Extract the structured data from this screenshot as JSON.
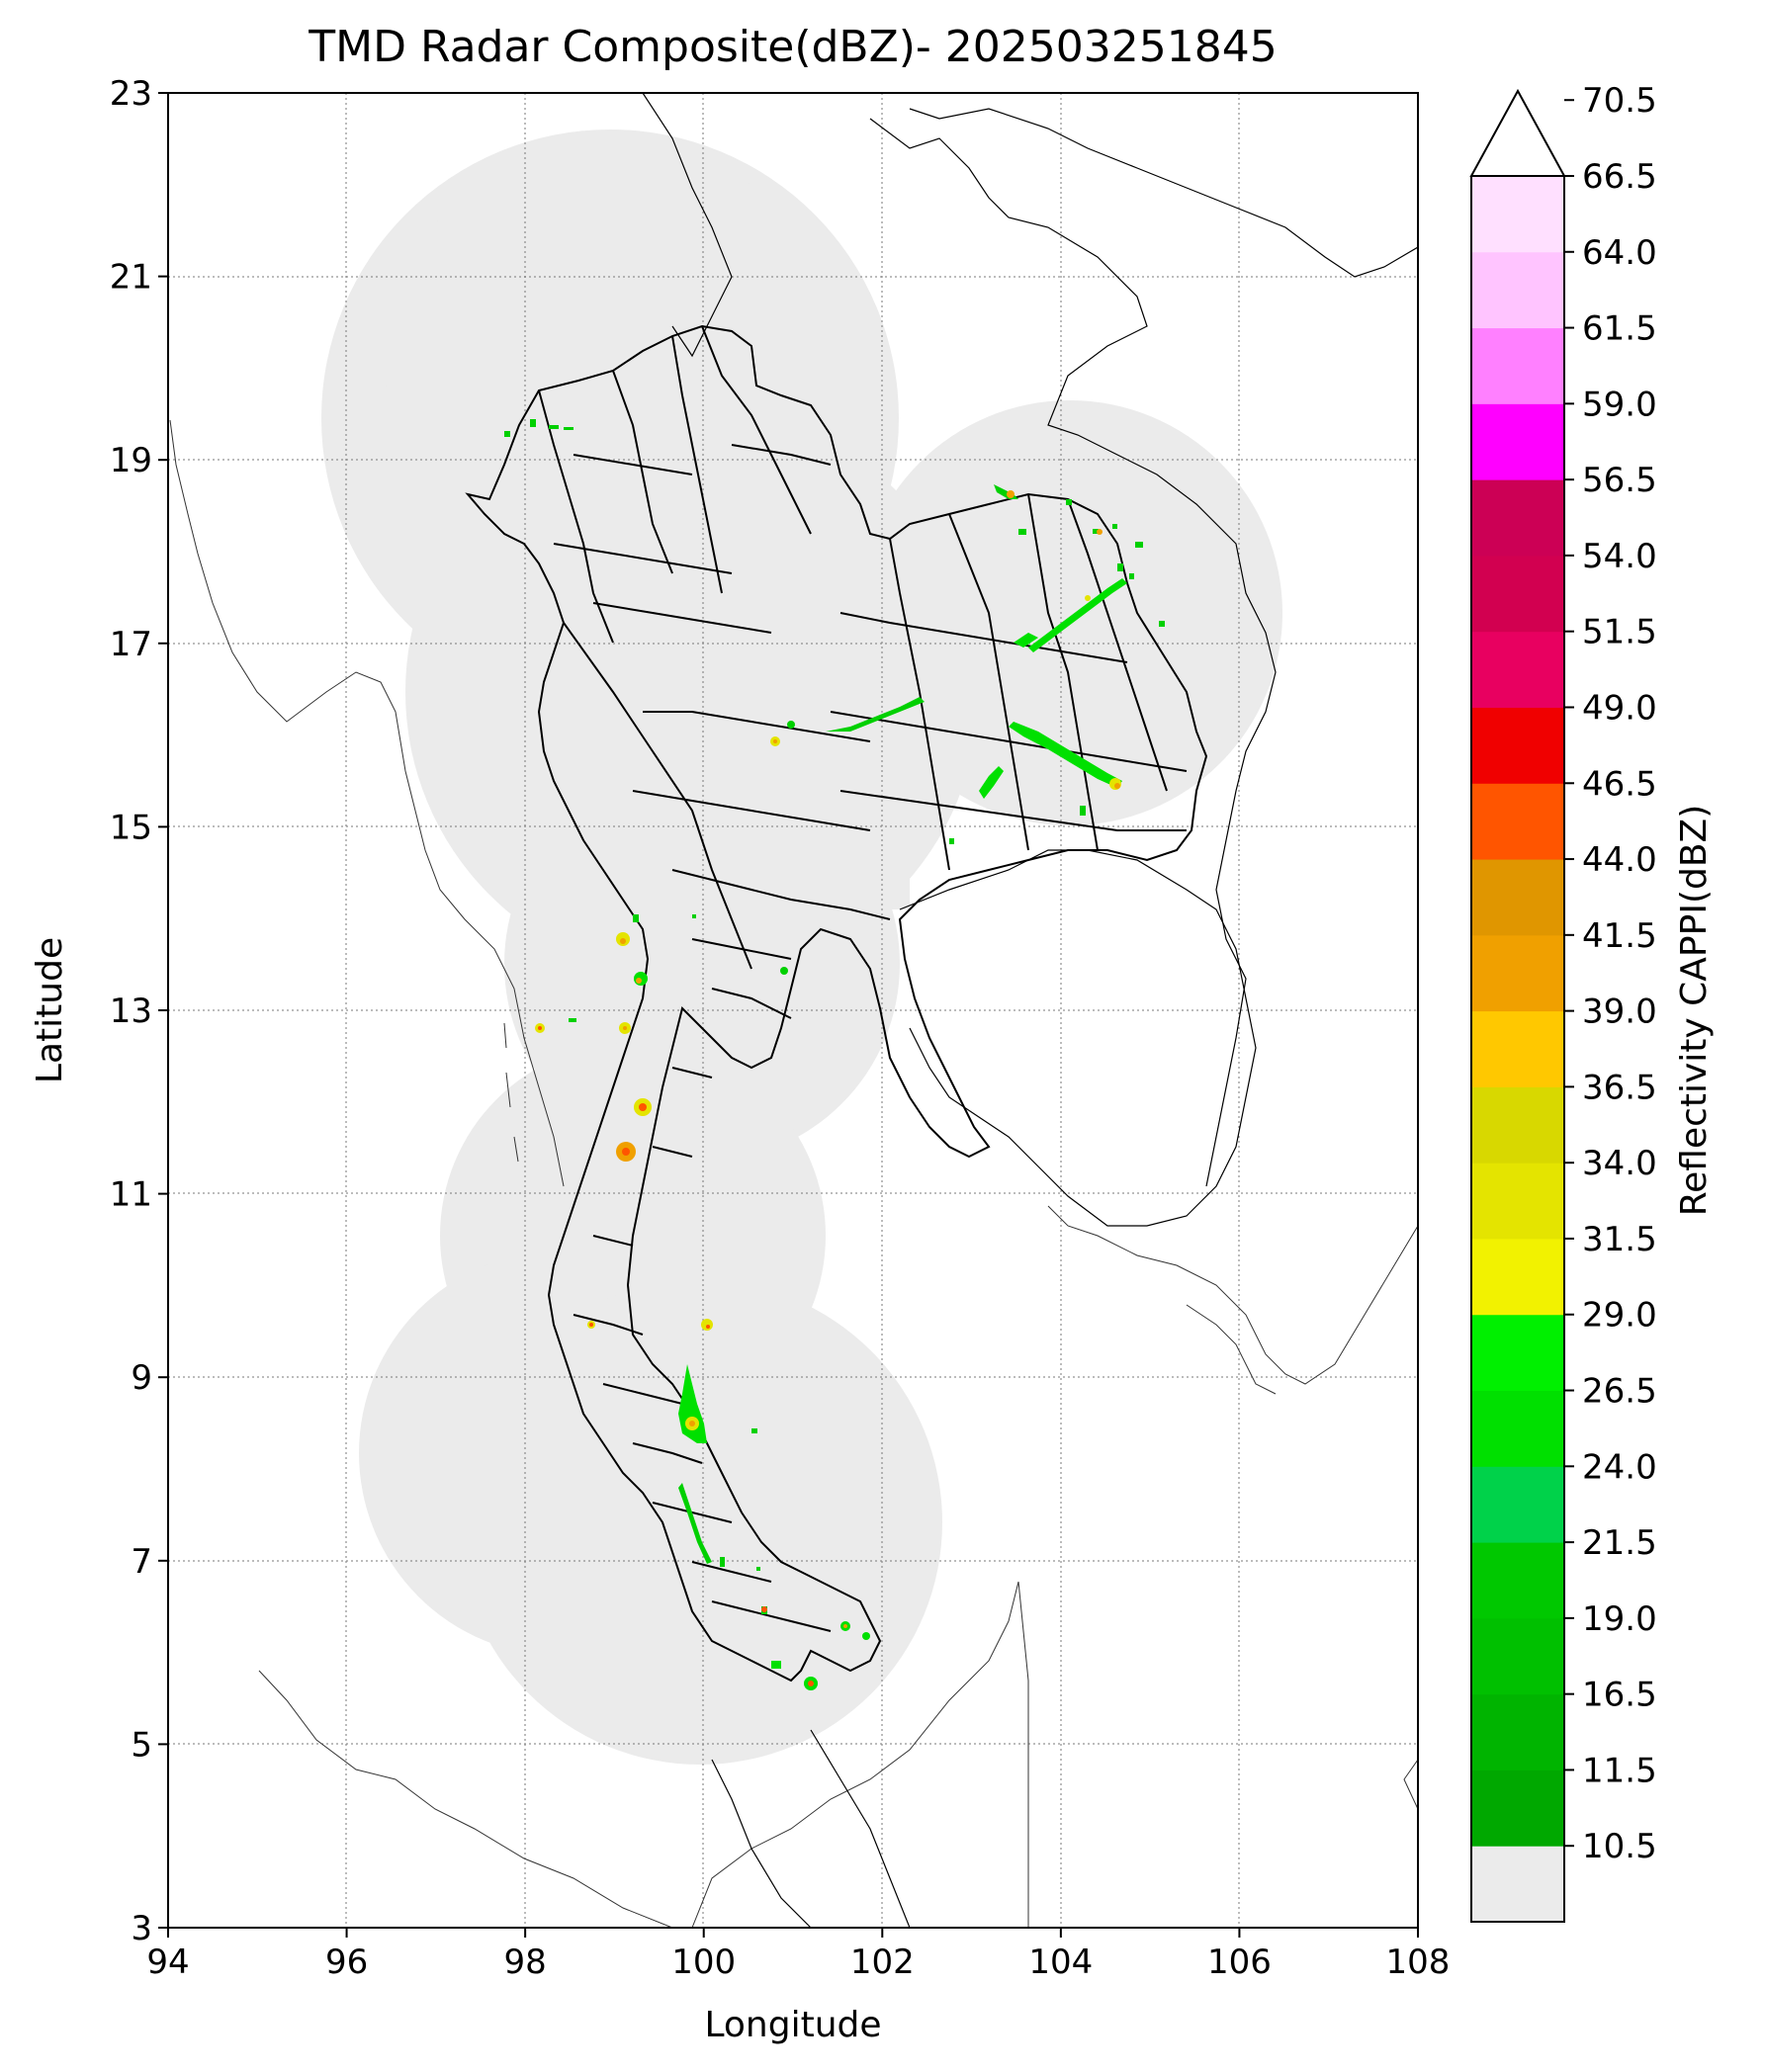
{
  "title": "TMD Radar Composite(dBZ)- 202503251845",
  "axes": {
    "xlabel": "Longitude",
    "ylabel": "Latitude",
    "xlim": [
      94,
      108
    ],
    "ylim": [
      3,
      23
    ],
    "xticks": [
      94,
      96,
      98,
      100,
      102,
      104,
      106,
      108
    ],
    "yticks": [
      3,
      5,
      7,
      9,
      11,
      13,
      15,
      17,
      19,
      21,
      23
    ],
    "grid": true
  },
  "colorbar": {
    "label": "Reflectivity CAPPI(dBZ)",
    "extend": "max",
    "ticks": [
      "10.5",
      "11.5",
      "16.5",
      "19.0",
      "21.5",
      "24.0",
      "26.5",
      "29.0",
      "31.5",
      "34.0",
      "36.5",
      "39.0",
      "41.5",
      "44.0",
      "46.5",
      "49.0",
      "51.5",
      "54.0",
      "56.5",
      "59.0",
      "61.5",
      "64.0",
      "66.5",
      "70.5"
    ],
    "colors": [
      "#ebebeb",
      "#00a800",
      "#00b400",
      "#00c000",
      "#00c800",
      "#00d24a",
      "#00e000",
      "#00f000",
      "#f2f200",
      "#e4e400",
      "#d8d800",
      "#ffc800",
      "#f0a000",
      "#e09600",
      "#ff5500",
      "#f00000",
      "#e80060",
      "#d20050",
      "#cc0055",
      "#ff00ff",
      "#ff80ff",
      "#ffc4ff",
      "#ffe0ff"
    ]
  },
  "radar_coverage": {
    "color": "#ebebeb",
    "stations_lonlat": [
      [
        99.0,
        19.3
      ],
      [
        100.0,
        21.2
      ],
      [
        104.5,
        17.3
      ],
      [
        98.4,
        17.0
      ],
      [
        98.9,
        13.3
      ],
      [
        99.6,
        10.5
      ],
      [
        99.0,
        8.2
      ],
      [
        101.1,
        7.5
      ]
    ]
  },
  "map_layers": [
    "coastlines",
    "country-borders",
    "province-boundaries",
    "radar-echoes"
  ]
}
